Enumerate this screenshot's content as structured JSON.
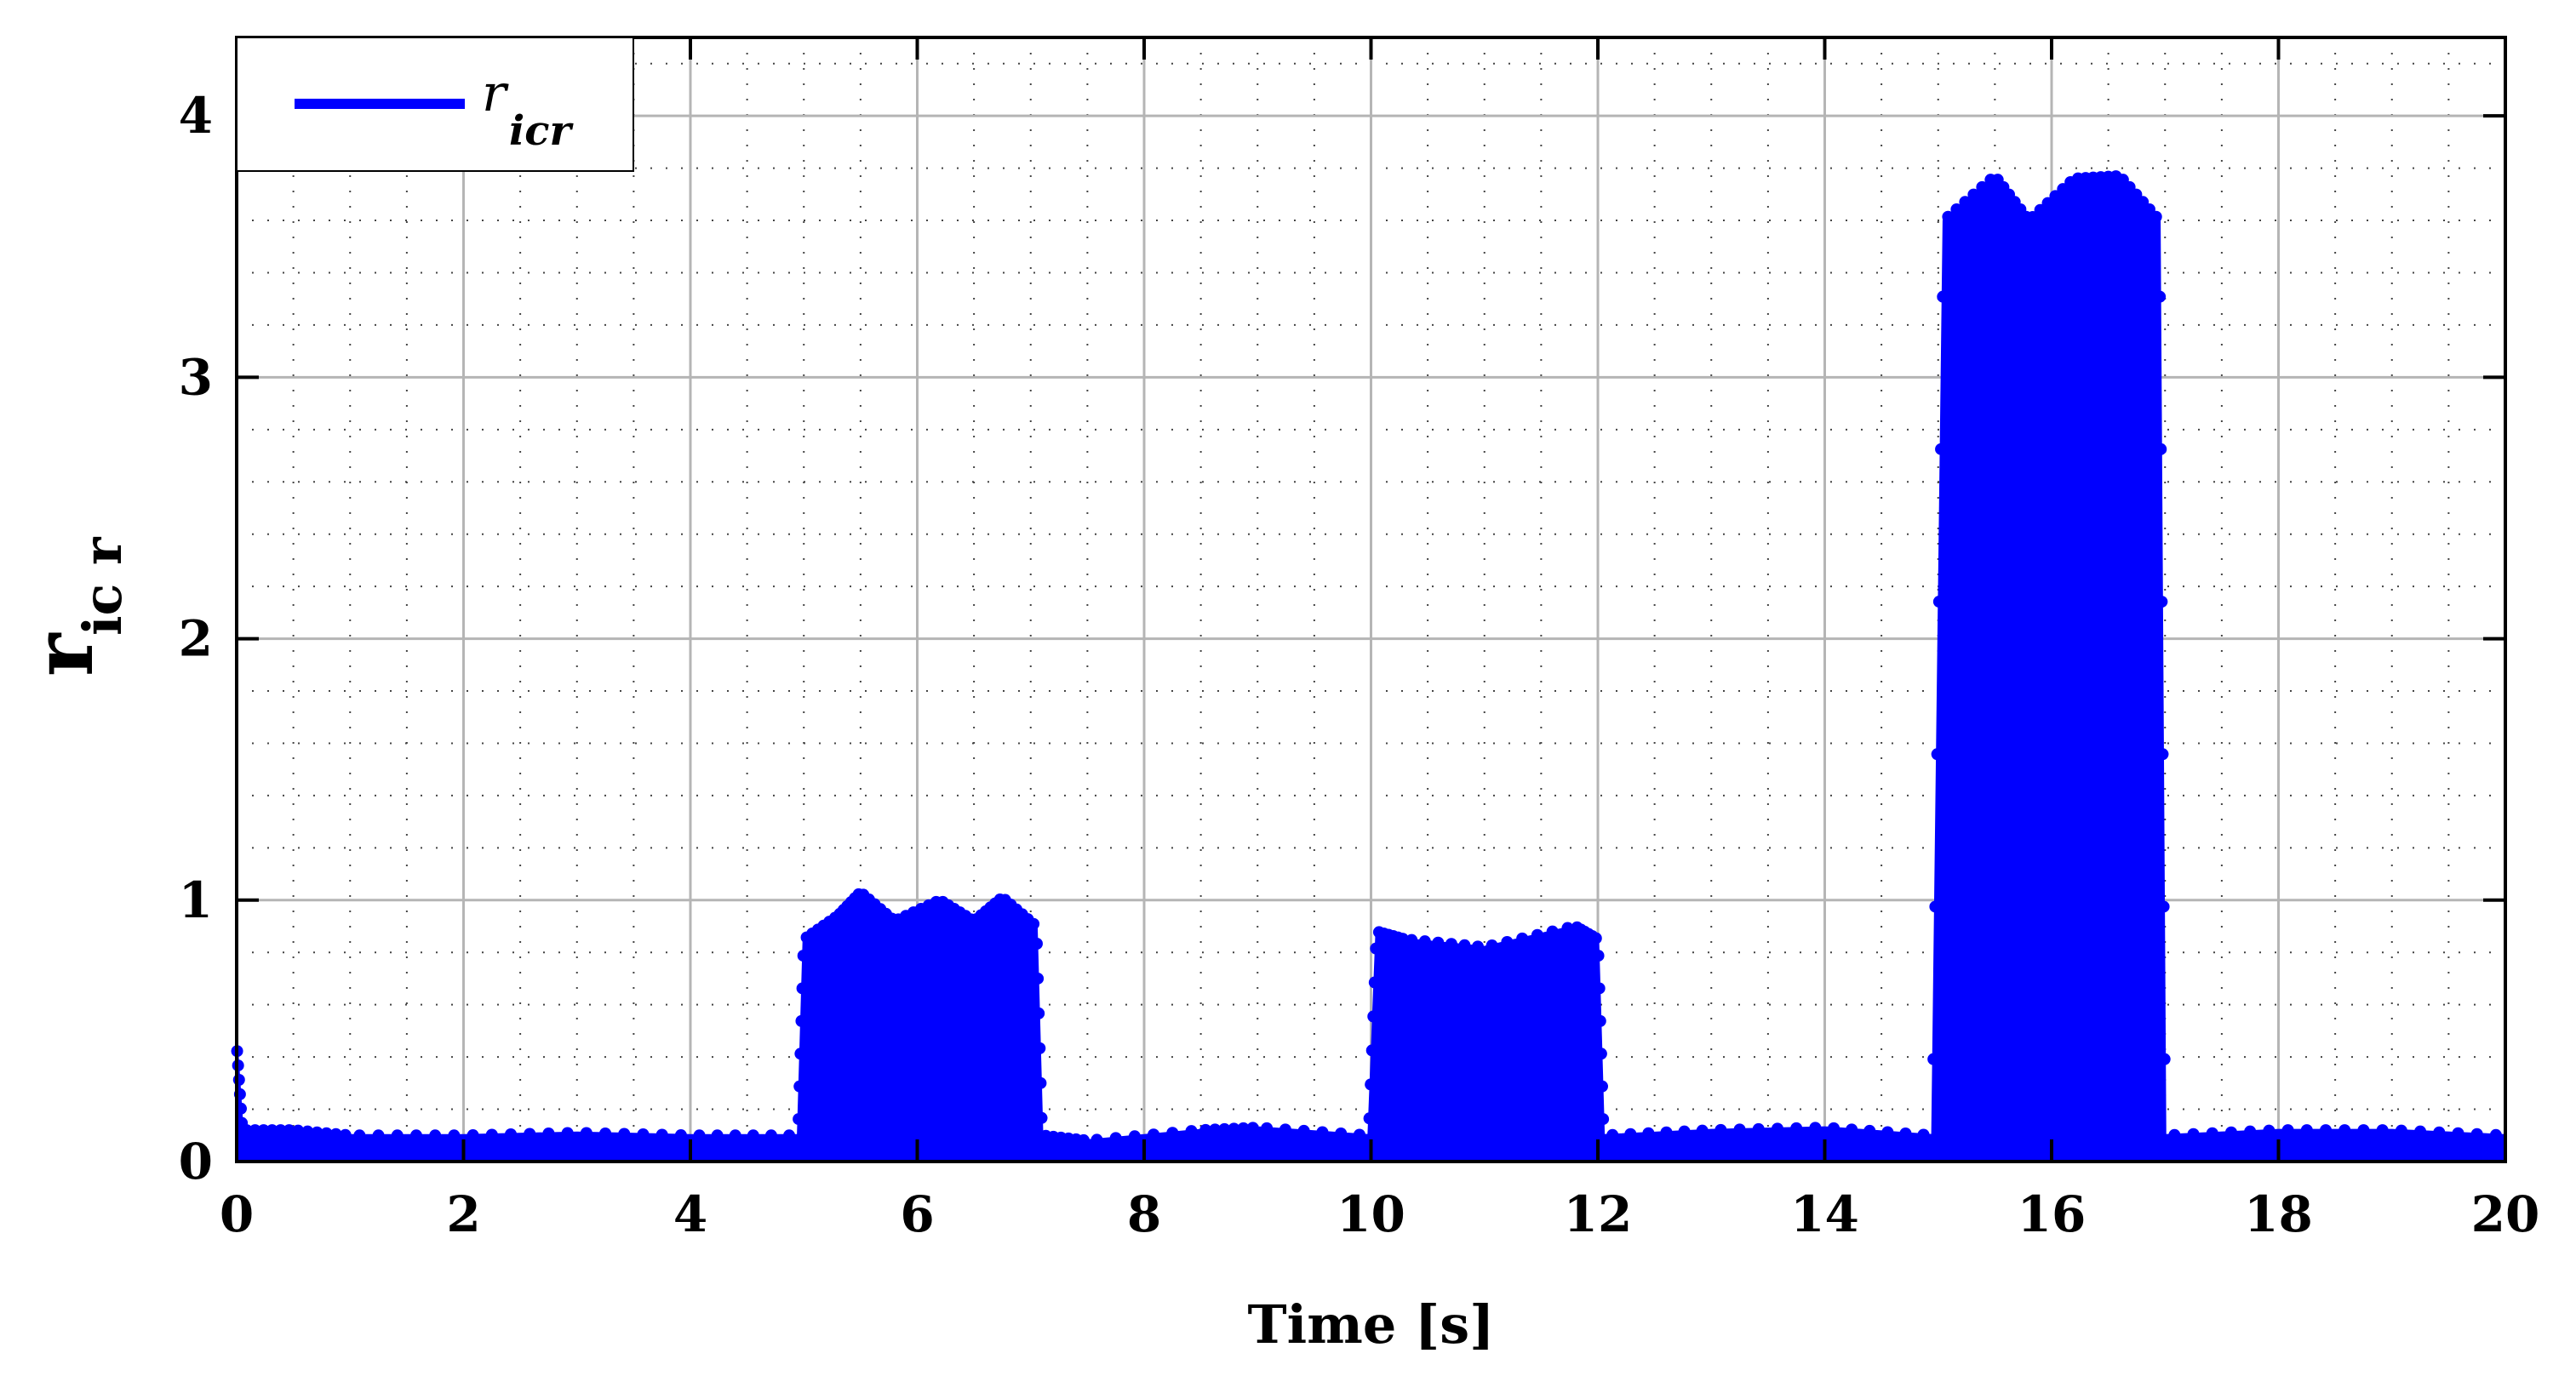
{
  "chart_data": {
    "type": "line",
    "title": "",
    "xlabel": "Time [s]",
    "ylabel_main": "r",
    "ylabel_sub": "ic r",
    "xlim": [
      0,
      20
    ],
    "ylim": [
      0,
      4.3
    ],
    "xticks": [
      0,
      2,
      4,
      6,
      8,
      10,
      12,
      14,
      16,
      18,
      20
    ],
    "yticks": [
      0,
      1,
      2,
      3,
      4
    ],
    "grid": true,
    "legend_position": "top-left",
    "series": [
      {
        "name_main": "r",
        "name_sub": "icr",
        "color": "#0000ff",
        "envelope": [
          {
            "x": 0.0,
            "upper": 0.45
          },
          {
            "x": 0.05,
            "upper": 0.12
          },
          {
            "x": 0.5,
            "upper": 0.12
          },
          {
            "x": 1.0,
            "upper": 0.1
          },
          {
            "x": 2.0,
            "upper": 0.1
          },
          {
            "x": 3.0,
            "upper": 0.11
          },
          {
            "x": 4.0,
            "upper": 0.1
          },
          {
            "x": 4.95,
            "upper": 0.1
          },
          {
            "x": 5.0,
            "upper": 0.85
          },
          {
            "x": 5.3,
            "upper": 0.94
          },
          {
            "x": 5.5,
            "upper": 1.03
          },
          {
            "x": 5.8,
            "upper": 0.92
          },
          {
            "x": 6.2,
            "upper": 1.0
          },
          {
            "x": 6.5,
            "upper": 0.92
          },
          {
            "x": 6.75,
            "upper": 1.01
          },
          {
            "x": 7.05,
            "upper": 0.9
          },
          {
            "x": 7.1,
            "upper": 0.1
          },
          {
            "x": 7.5,
            "upper": 0.08
          },
          {
            "x": 8.5,
            "upper": 0.12
          },
          {
            "x": 9.0,
            "upper": 0.13
          },
          {
            "x": 9.98,
            "upper": 0.1
          },
          {
            "x": 10.05,
            "upper": 0.88
          },
          {
            "x": 10.3,
            "upper": 0.85
          },
          {
            "x": 11.0,
            "upper": 0.82
          },
          {
            "x": 11.8,
            "upper": 0.9
          },
          {
            "x": 12.0,
            "upper": 0.85
          },
          {
            "x": 12.05,
            "upper": 0.1
          },
          {
            "x": 13.0,
            "upper": 0.12
          },
          {
            "x": 14.0,
            "upper": 0.13
          },
          {
            "x": 14.95,
            "upper": 0.1
          },
          {
            "x": 15.05,
            "upper": 3.6
          },
          {
            "x": 15.5,
            "upper": 3.77
          },
          {
            "x": 15.8,
            "upper": 3.6
          },
          {
            "x": 16.2,
            "upper": 3.76
          },
          {
            "x": 16.6,
            "upper": 3.77
          },
          {
            "x": 16.95,
            "upper": 3.6
          },
          {
            "x": 17.0,
            "upper": 0.1
          },
          {
            "x": 18.0,
            "upper": 0.12
          },
          {
            "x": 19.0,
            "upper": 0.12
          },
          {
            "x": 20.0,
            "upper": 0.1
          }
        ],
        "lower": 0.0
      }
    ]
  }
}
